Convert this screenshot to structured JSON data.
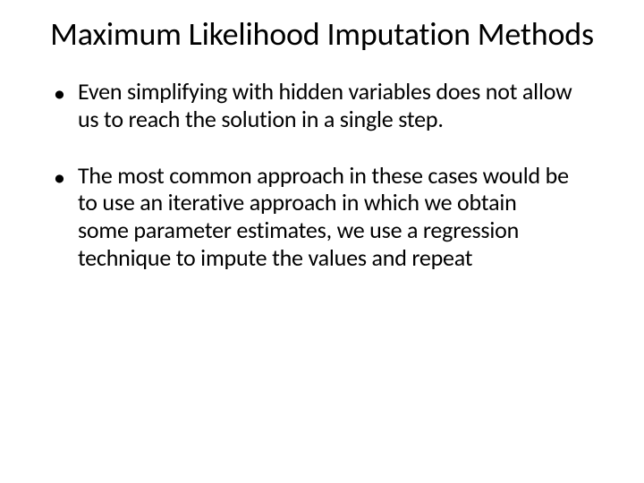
{
  "slide": {
    "title": "Maximum Likelihood Imputation Methods",
    "bullets": [
      {
        "marker": "•",
        "text": "Even simplifying with hidden variables does not allow us to reach the solution in a single step."
      },
      {
        "marker": "•",
        "text": "The most common approach in these cases would be to use an iterative approach in which we obtain some parameter estimates, we use a regression technique to impute the values and repeat"
      }
    ]
  },
  "styling": {
    "background_color": "#ffffff",
    "text_color": "#000000",
    "title_fontsize": 36,
    "title_fontweight": 400,
    "body_fontsize": 26,
    "font_family": "Calibri",
    "bullet_spacing": 32,
    "line_height": 1.18
  }
}
